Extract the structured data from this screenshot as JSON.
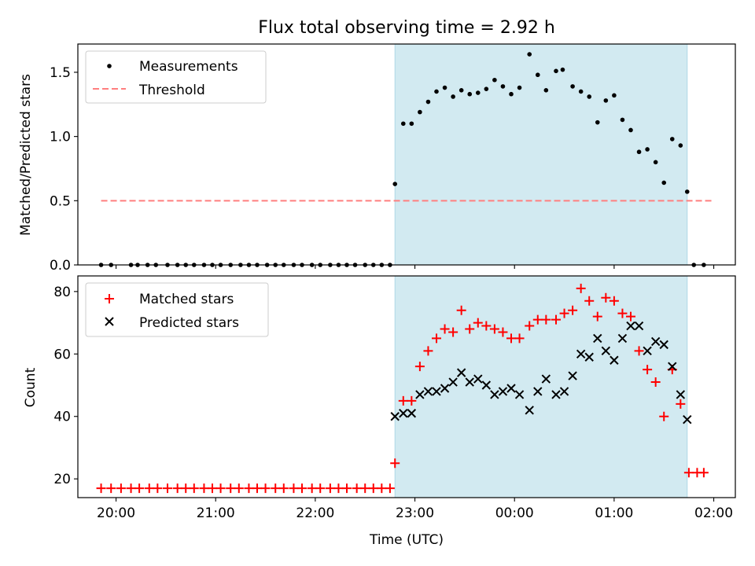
{
  "title": "Flux total observing time = 2.92 h",
  "colors": {
    "span": "#add8e6",
    "threshold": "#ff7f7f",
    "measurement": "#000000",
    "matched": "#ff0000",
    "predicted": "#000000"
  },
  "chart_data": [
    {
      "id": "ratio",
      "type": "scatter",
      "ylabel": "Matched/Predicted stars",
      "ylim": [
        0,
        1.72
      ],
      "yticks": [
        0.0,
        0.5,
        1.0,
        1.5
      ],
      "ytick_labels": [
        "0.0",
        "0.5",
        "1.0",
        "1.5"
      ],
      "xlim": [
        "19:37",
        "02:13"
      ],
      "xticks": [
        "20:00",
        "21:00",
        "22:00",
        "23:00",
        "00:00",
        "01:00",
        "02:00"
      ],
      "shaded_span": [
        "22:48",
        "01:44"
      ],
      "legend": {
        "position": "upper left",
        "entries": [
          "Measurements",
          "Threshold"
        ]
      },
      "threshold": {
        "y": 0.5,
        "x_range": [
          "19:51",
          "01:59"
        ]
      },
      "series": [
        {
          "name": "Measurements",
          "marker": "dot",
          "points": [
            [
              "19:51",
              0
            ],
            [
              "19:57",
              0
            ],
            [
              "20:09",
              0
            ],
            [
              "20:13",
              0
            ],
            [
              "20:19",
              0
            ],
            [
              "20:24",
              0
            ],
            [
              "20:31",
              0
            ],
            [
              "20:37",
              0
            ],
            [
              "20:42",
              0
            ],
            [
              "20:47",
              0
            ],
            [
              "20:53",
              0
            ],
            [
              "20:58",
              0
            ],
            [
              "21:03",
              0
            ],
            [
              "21:09",
              0
            ],
            [
              "21:15",
              0
            ],
            [
              "21:20",
              0
            ],
            [
              "21:25",
              0
            ],
            [
              "21:31",
              0
            ],
            [
              "21:36",
              0
            ],
            [
              "21:41",
              0
            ],
            [
              "21:47",
              0
            ],
            [
              "21:52",
              0
            ],
            [
              "21:58",
              0
            ],
            [
              "22:03",
              0
            ],
            [
              "22:09",
              0
            ],
            [
              "22:14",
              0
            ],
            [
              "22:19",
              0
            ],
            [
              "22:24",
              0
            ],
            [
              "22:30",
              0
            ],
            [
              "22:35",
              0
            ],
            [
              "22:40",
              0
            ],
            [
              "22:45",
              0
            ],
            [
              "22:48",
              0.63
            ],
            [
              "22:53",
              1.1
            ],
            [
              "22:58",
              1.1
            ],
            [
              "23:03",
              1.19
            ],
            [
              "23:08",
              1.27
            ],
            [
              "23:13",
              1.35
            ],
            [
              "23:18",
              1.38
            ],
            [
              "23:23",
              1.31
            ],
            [
              "23:28",
              1.36
            ],
            [
              "23:33",
              1.33
            ],
            [
              "23:38",
              1.34
            ],
            [
              "23:43",
              1.37
            ],
            [
              "23:48",
              1.44
            ],
            [
              "23:53",
              1.39
            ],
            [
              "23:58",
              1.33
            ],
            [
              "00:03",
              1.38
            ],
            [
              "00:09",
              1.64
            ],
            [
              "00:14",
              1.48
            ],
            [
              "00:19",
              1.36
            ],
            [
              "00:25",
              1.51
            ],
            [
              "00:29",
              1.52
            ],
            [
              "00:35",
              1.39
            ],
            [
              "00:40",
              1.35
            ],
            [
              "00:45",
              1.31
            ],
            [
              "00:50",
              1.11
            ],
            [
              "00:55",
              1.28
            ],
            [
              "01:00",
              1.32
            ],
            [
              "01:05",
              1.13
            ],
            [
              "01:10",
              1.05
            ],
            [
              "01:15",
              0.88
            ],
            [
              "01:20",
              0.9
            ],
            [
              "01:25",
              0.8
            ],
            [
              "01:30",
              0.64
            ],
            [
              "01:35",
              0.98
            ],
            [
              "01:40",
              0.93
            ],
            [
              "01:44",
              0.57
            ],
            [
              "01:48",
              0
            ],
            [
              "01:54",
              0
            ]
          ]
        }
      ]
    },
    {
      "id": "count",
      "type": "scatter",
      "xlabel": "Time (UTC)",
      "ylabel": "Count",
      "ylim": [
        14,
        85
      ],
      "yticks": [
        20,
        40,
        60,
        80
      ],
      "ytick_labels": [
        "20",
        "40",
        "60",
        "80"
      ],
      "xlim": [
        "19:37",
        "02:13"
      ],
      "xticks": [
        "20:00",
        "21:00",
        "22:00",
        "23:00",
        "00:00",
        "01:00",
        "02:00"
      ],
      "xtick_labels": [
        "20:00",
        "21:00",
        "22:00",
        "23:00",
        "00:00",
        "01:00",
        "02:00"
      ],
      "shaded_span": [
        "22:48",
        "01:44"
      ],
      "legend": {
        "position": "upper left",
        "entries": [
          "Matched stars",
          "Predicted stars"
        ]
      },
      "series": [
        {
          "name": "Matched stars",
          "marker": "plus",
          "points": [
            [
              "19:51",
              17
            ],
            [
              "19:57",
              17
            ],
            [
              "20:03",
              17
            ],
            [
              "20:09",
              17
            ],
            [
              "20:14",
              17
            ],
            [
              "20:20",
              17
            ],
            [
              "20:25",
              17
            ],
            [
              "20:31",
              17
            ],
            [
              "20:37",
              17
            ],
            [
              "20:42",
              17
            ],
            [
              "20:47",
              17
            ],
            [
              "20:53",
              17
            ],
            [
              "20:58",
              17
            ],
            [
              "21:03",
              17
            ],
            [
              "21:09",
              17
            ],
            [
              "21:14",
              17
            ],
            [
              "21:20",
              17
            ],
            [
              "21:25",
              17
            ],
            [
              "21:30",
              17
            ],
            [
              "21:36",
              17
            ],
            [
              "21:41",
              17
            ],
            [
              "21:47",
              17
            ],
            [
              "21:52",
              17
            ],
            [
              "21:58",
              17
            ],
            [
              "22:03",
              17
            ],
            [
              "22:09",
              17
            ],
            [
              "22:14",
              17
            ],
            [
              "22:19",
              17
            ],
            [
              "22:25",
              17
            ],
            [
              "22:30",
              17
            ],
            [
              "22:35",
              17
            ],
            [
              "22:40",
              17
            ],
            [
              "22:45",
              17
            ],
            [
              "22:48",
              25
            ],
            [
              "22:53",
              45
            ],
            [
              "22:58",
              45
            ],
            [
              "23:03",
              56
            ],
            [
              "23:08",
              61
            ],
            [
              "23:13",
              65
            ],
            [
              "23:18",
              68
            ],
            [
              "23:23",
              67
            ],
            [
              "23:28",
              74
            ],
            [
              "23:33",
              68
            ],
            [
              "23:38",
              70
            ],
            [
              "23:43",
              69
            ],
            [
              "23:48",
              68
            ],
            [
              "23:53",
              67
            ],
            [
              "23:58",
              65
            ],
            [
              "00:03",
              65
            ],
            [
              "00:09",
              69
            ],
            [
              "00:14",
              71
            ],
            [
              "00:19",
              71
            ],
            [
              "00:25",
              71
            ],
            [
              "00:30",
              73
            ],
            [
              "00:35",
              74
            ],
            [
              "00:40",
              81
            ],
            [
              "00:45",
              77
            ],
            [
              "00:50",
              72
            ],
            [
              "00:55",
              78
            ],
            [
              "01:00",
              77
            ],
            [
              "01:05",
              73
            ],
            [
              "01:10",
              72
            ],
            [
              "01:15",
              61
            ],
            [
              "01:20",
              55
            ],
            [
              "01:25",
              51
            ],
            [
              "01:30",
              40
            ],
            [
              "01:35",
              55
            ],
            [
              "01:40",
              44
            ],
            [
              "01:45",
              22
            ],
            [
              "01:50",
              22
            ],
            [
              "01:54",
              22
            ]
          ]
        },
        {
          "name": "Predicted stars",
          "marker": "x",
          "points": [
            [
              "22:48",
              40
            ],
            [
              "22:53",
              41
            ],
            [
              "22:58",
              41
            ],
            [
              "23:03",
              47
            ],
            [
              "23:08",
              48
            ],
            [
              "23:13",
              48
            ],
            [
              "23:18",
              49
            ],
            [
              "23:23",
              51
            ],
            [
              "23:28",
              54
            ],
            [
              "23:33",
              51
            ],
            [
              "23:38",
              52
            ],
            [
              "23:43",
              50
            ],
            [
              "23:48",
              47
            ],
            [
              "23:53",
              48
            ],
            [
              "23:58",
              49
            ],
            [
              "00:03",
              47
            ],
            [
              "00:09",
              42
            ],
            [
              "00:14",
              48
            ],
            [
              "00:19",
              52
            ],
            [
              "00:25",
              47
            ],
            [
              "00:30",
              48
            ],
            [
              "00:35",
              53
            ],
            [
              "00:40",
              60
            ],
            [
              "00:45",
              59
            ],
            [
              "00:50",
              65
            ],
            [
              "00:55",
              61
            ],
            [
              "01:00",
              58
            ],
            [
              "01:05",
              65
            ],
            [
              "01:10",
              69
            ],
            [
              "01:15",
              69
            ],
            [
              "01:20",
              61
            ],
            [
              "01:25",
              64
            ],
            [
              "01:30",
              63
            ],
            [
              "01:35",
              56
            ],
            [
              "01:40",
              47
            ],
            [
              "01:44",
              39
            ]
          ]
        }
      ]
    }
  ]
}
